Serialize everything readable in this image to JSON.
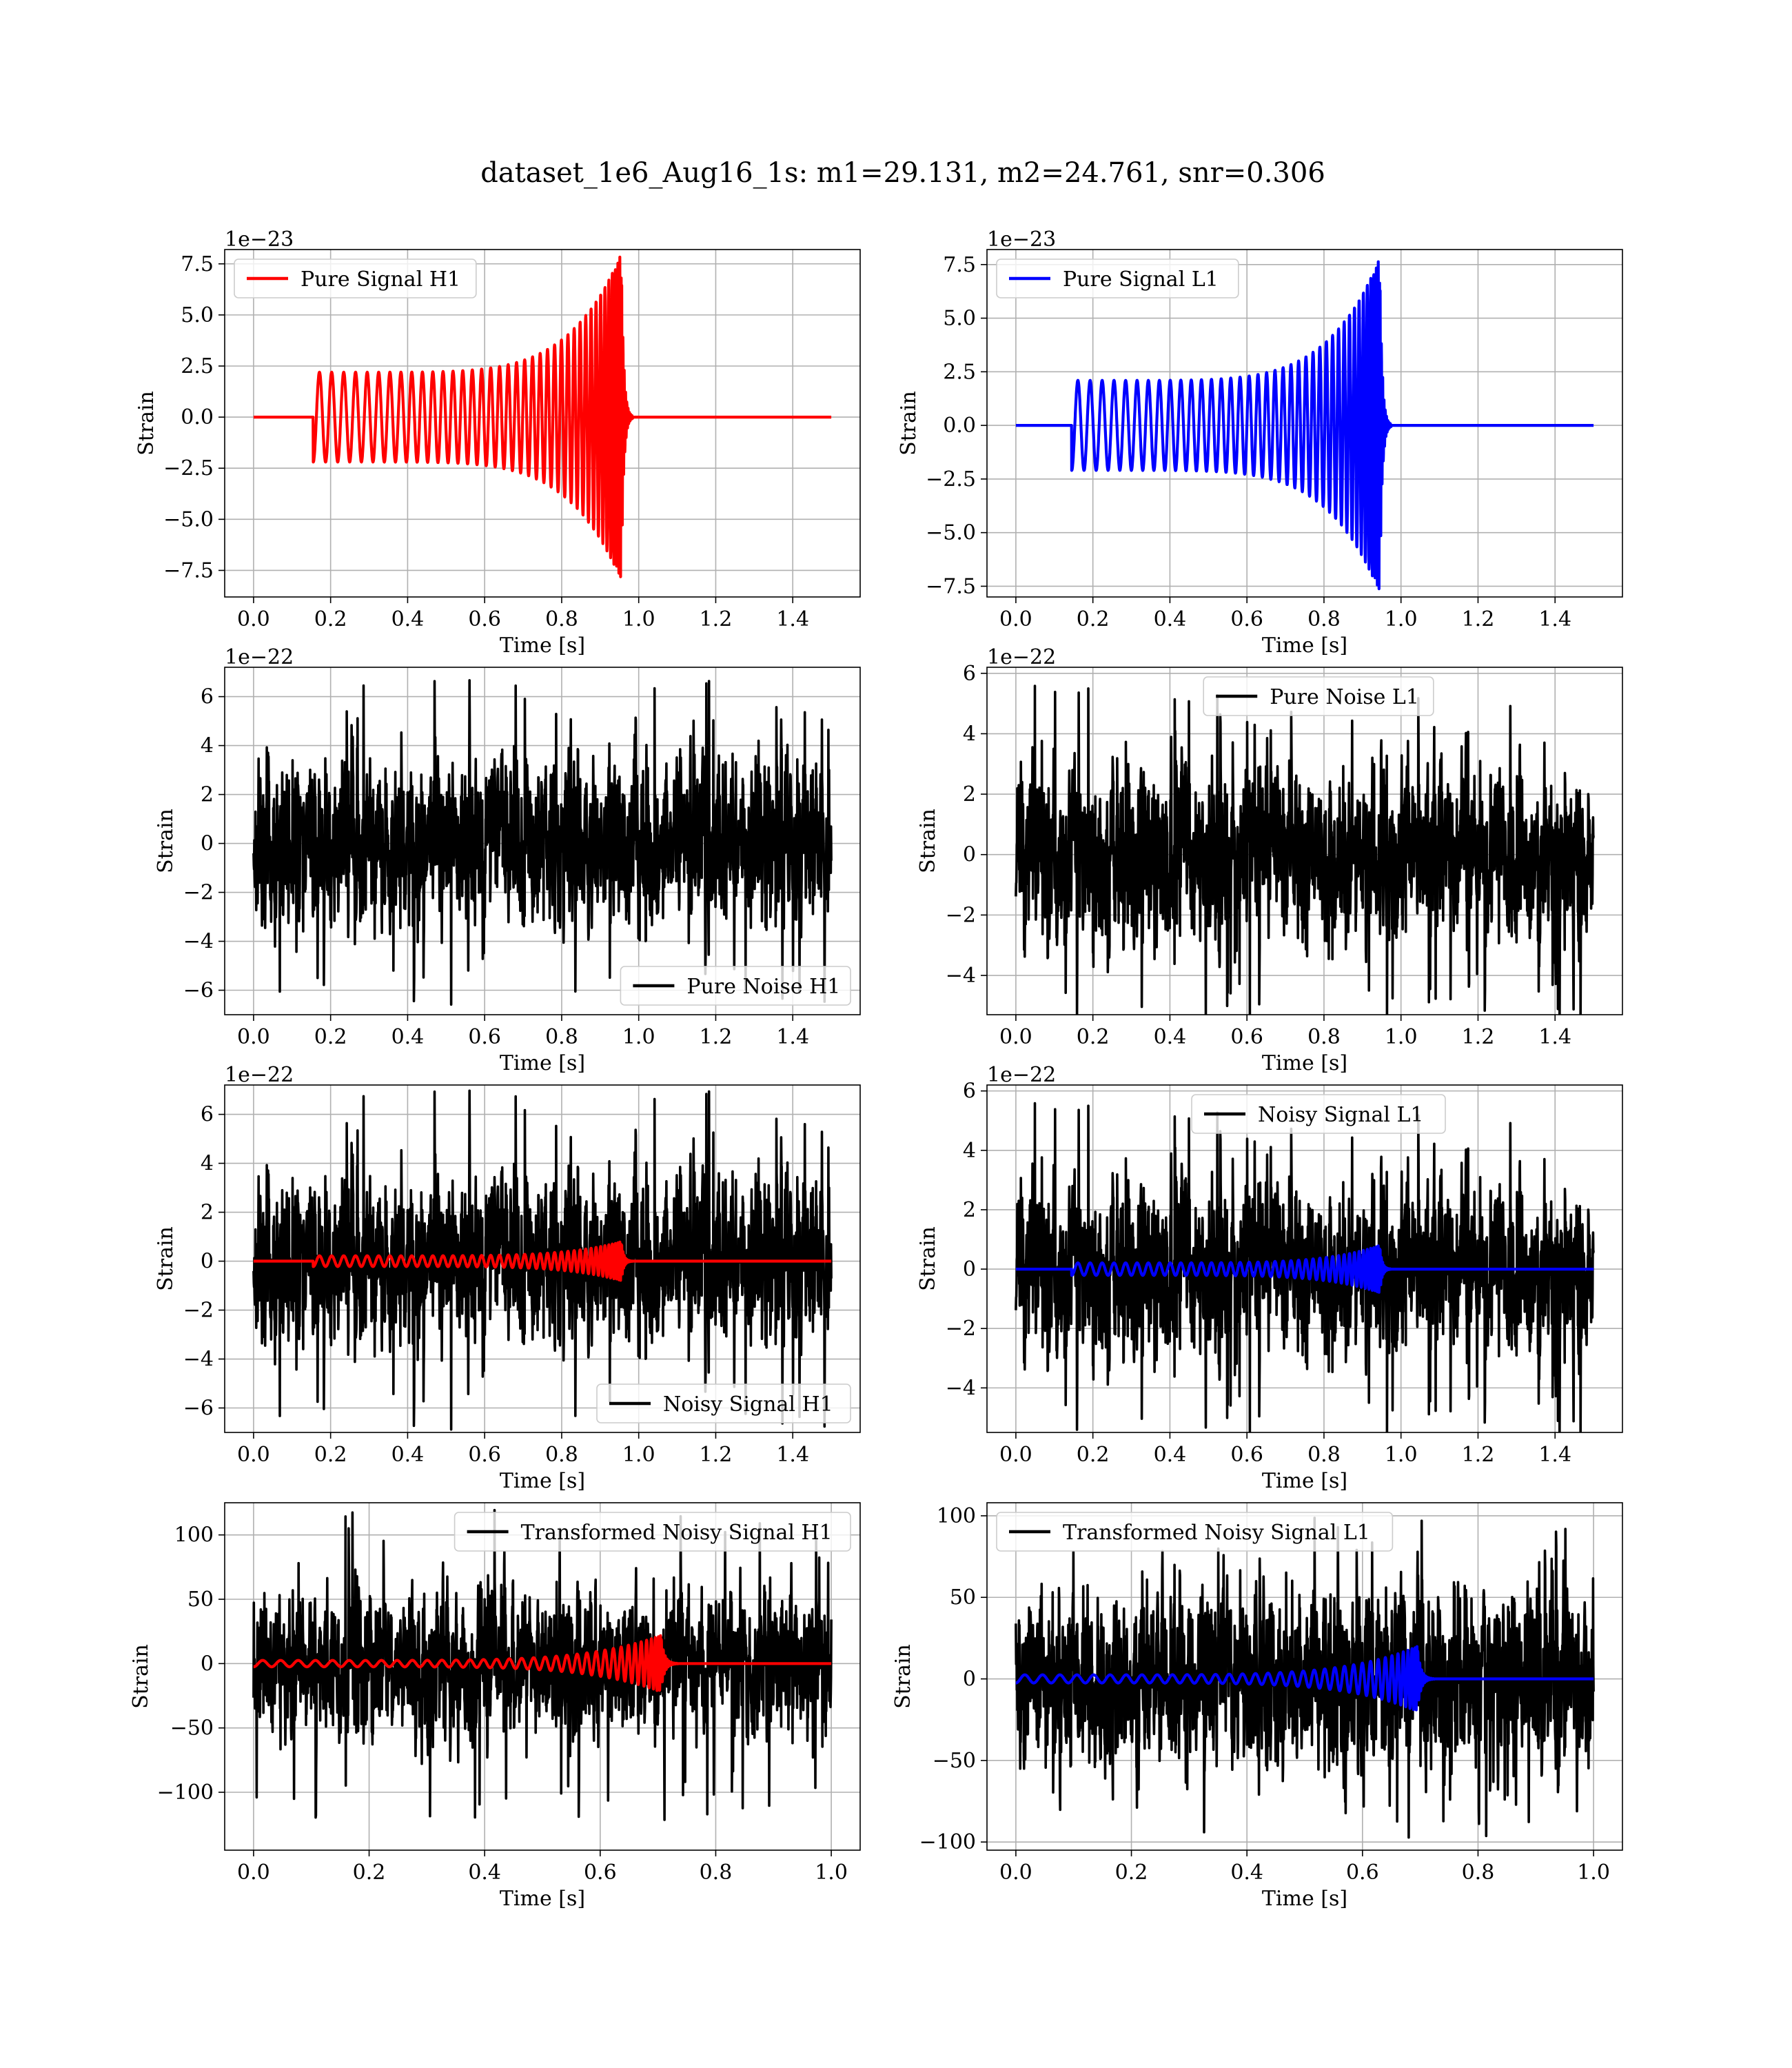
{
  "title": "dataset_1e6_Aug16_1s: m1=29.131, m2=24.761, snr=0.306",
  "chart_data": [
    {
      "type": "line",
      "panel": "top-left",
      "xlabel": "Time [s]",
      "ylabel": "Strain",
      "offset_text": "1e−23",
      "xlim": [
        -0.075,
        1.575
      ],
      "ylim": [
        -8.8,
        8.2
      ],
      "xticks": [
        0.0,
        0.2,
        0.4,
        0.6,
        0.8,
        1.0,
        1.2,
        1.4
      ],
      "xtick_labels": [
        "0.0",
        "0.2",
        "0.4",
        "0.6",
        "0.8",
        "1.0",
        "1.2",
        "1.4"
      ],
      "yticks": [
        -7.5,
        -5.0,
        -2.5,
        0.0,
        2.5,
        5.0,
        7.5
      ],
      "ytick_labels": [
        "−7.5",
        "−5.0",
        "−2.5",
        "0.0",
        "2.5",
        "5.0",
        "7.5"
      ],
      "legend": "upper-left",
      "series": [
        {
          "name": "Pure Signal H1",
          "kind": "chirp",
          "color": "#ff0000",
          "x_range": [
            0,
            1.5
          ],
          "t_start": 0.155,
          "t_merge": 0.955,
          "amplitude_start": 2.2,
          "amplitude_peak": 8.0,
          "cycles": 40
        }
      ]
    },
    {
      "type": "line",
      "panel": "top-right",
      "xlabel": "Time [s]",
      "ylabel": "Strain",
      "offset_text": "1e−23",
      "xlim": [
        -0.075,
        1.575
      ],
      "ylim": [
        -8.0,
        8.2
      ],
      "xticks": [
        0.0,
        0.2,
        0.4,
        0.6,
        0.8,
        1.0,
        1.2,
        1.4
      ],
      "xtick_labels": [
        "0.0",
        "0.2",
        "0.4",
        "0.6",
        "0.8",
        "1.0",
        "1.2",
        "1.4"
      ],
      "yticks": [
        -7.5,
        -5.0,
        -2.5,
        0.0,
        2.5,
        5.0,
        7.5
      ],
      "ytick_labels": [
        "−7.5",
        "−5.0",
        "−2.5",
        "0.0",
        "2.5",
        "5.0",
        "7.5"
      ],
      "legend": "upper-left",
      "series": [
        {
          "name": "Pure Signal L1",
          "kind": "chirp",
          "color": "#0000ff",
          "x_range": [
            0,
            1.5
          ],
          "t_start": 0.145,
          "t_merge": 0.945,
          "amplitude_start": 2.1,
          "amplitude_peak": 7.8,
          "cycles": 40
        }
      ]
    },
    {
      "type": "line",
      "panel": "second-left",
      "xlabel": "Time [s]",
      "ylabel": "Strain",
      "offset_text": "1e−22",
      "xlim": [
        -0.075,
        1.575
      ],
      "ylim": [
        -7.0,
        7.2
      ],
      "xticks": [
        0.0,
        0.2,
        0.4,
        0.6,
        0.8,
        1.0,
        1.2,
        1.4
      ],
      "xtick_labels": [
        "0.0",
        "0.2",
        "0.4",
        "0.6",
        "0.8",
        "1.0",
        "1.2",
        "1.4"
      ],
      "yticks": [
        -6,
        -4,
        -2,
        0,
        2,
        4,
        6
      ],
      "ytick_labels": [
        "−6",
        "−4",
        "−2",
        "0",
        "2",
        "4",
        "6"
      ],
      "legend": "lower-right",
      "series": [
        {
          "name": "Pure Noise H1",
          "kind": "noise",
          "color": "#000000",
          "x_range": [
            0,
            1.5
          ],
          "spread": 1.45,
          "max_abs": 6.7,
          "seed": 11
        }
      ]
    },
    {
      "type": "line",
      "panel": "second-right",
      "xlabel": "Time [s]",
      "ylabel": "Strain",
      "offset_text": "1e−22",
      "xlim": [
        -0.075,
        1.575
      ],
      "ylim": [
        -5.3,
        6.2
      ],
      "xticks": [
        0.0,
        0.2,
        0.4,
        0.6,
        0.8,
        1.0,
        1.2,
        1.4
      ],
      "xtick_labels": [
        "0.0",
        "0.2",
        "0.4",
        "0.6",
        "0.8",
        "1.0",
        "1.2",
        "1.4"
      ],
      "yticks": [
        -4,
        -2,
        0,
        2,
        4,
        6
      ],
      "ytick_labels": [
        "−4",
        "−2",
        "0",
        "2",
        "4",
        "6"
      ],
      "legend": "upper-center",
      "series": [
        {
          "name": "Pure Noise L1",
          "kind": "noise",
          "color": "#000000",
          "x_range": [
            0,
            1.5
          ],
          "spread": 1.25,
          "max_abs": 5.6,
          "seed": 23
        }
      ]
    },
    {
      "type": "line",
      "panel": "third-left",
      "xlabel": "Time [s]",
      "ylabel": "Strain",
      "offset_text": "1e−22",
      "xlim": [
        -0.075,
        1.575
      ],
      "ylim": [
        -7.0,
        7.2
      ],
      "xticks": [
        0.0,
        0.2,
        0.4,
        0.6,
        0.8,
        1.0,
        1.2,
        1.4
      ],
      "xtick_labels": [
        "0.0",
        "0.2",
        "0.4",
        "0.6",
        "0.8",
        "1.0",
        "1.2",
        "1.4"
      ],
      "yticks": [
        -6,
        -4,
        -2,
        0,
        2,
        4,
        6
      ],
      "ytick_labels": [
        "−6",
        "−4",
        "−2",
        "0",
        "2",
        "4",
        "6"
      ],
      "legend": "lower-right",
      "series": [
        {
          "name": "Noisy Signal H1",
          "kind": "noise",
          "color": "#000000",
          "x_range": [
            0,
            1.5
          ],
          "spread": 1.45,
          "max_abs": 7.0,
          "seed": 11
        },
        {
          "kind": "chirp",
          "color": "#ff0000",
          "x_range": [
            0,
            1.5
          ],
          "t_start": 0.155,
          "t_merge": 0.955,
          "amplitude_start": 0.22,
          "amplitude_peak": 0.8,
          "cycles": 40
        }
      ]
    },
    {
      "type": "line",
      "panel": "third-right",
      "xlabel": "Time [s]",
      "ylabel": "Strain",
      "offset_text": "1e−22",
      "xlim": [
        -0.075,
        1.575
      ],
      "ylim": [
        -5.5,
        6.2
      ],
      "xticks": [
        0.0,
        0.2,
        0.4,
        0.6,
        0.8,
        1.0,
        1.2,
        1.4
      ],
      "xtick_labels": [
        "0.0",
        "0.2",
        "0.4",
        "0.6",
        "0.8",
        "1.0",
        "1.2",
        "1.4"
      ],
      "yticks": [
        -4,
        -2,
        0,
        2,
        4,
        6
      ],
      "ytick_labels": [
        "−4",
        "−2",
        "0",
        "2",
        "4",
        "6"
      ],
      "legend": "upper-center",
      "series": [
        {
          "name": "Noisy Signal L1",
          "kind": "noise",
          "color": "#000000",
          "x_range": [
            0,
            1.5
          ],
          "spread": 1.25,
          "max_abs": 5.6,
          "seed": 23
        },
        {
          "kind": "chirp",
          "color": "#0000ff",
          "x_range": [
            0,
            1.5
          ],
          "t_start": 0.145,
          "t_merge": 0.945,
          "amplitude_start": 0.21,
          "amplitude_peak": 0.8,
          "cycles": 40
        }
      ]
    },
    {
      "type": "line",
      "panel": "bottom-left",
      "xlabel": "Time [s]",
      "ylabel": "Strain",
      "offset_text": "",
      "xlim": [
        -0.05,
        1.05
      ],
      "ylim": [
        -145,
        125
      ],
      "xticks": [
        0.0,
        0.2,
        0.4,
        0.6,
        0.8,
        1.0
      ],
      "xtick_labels": [
        "0.0",
        "0.2",
        "0.4",
        "0.6",
        "0.8",
        "1.0"
      ],
      "yticks": [
        -100,
        -50,
        0,
        50,
        100
      ],
      "ytick_labels": [
        "−100",
        "−50",
        "0",
        "50",
        "100"
      ],
      "legend": "upper-right",
      "series": [
        {
          "name": "Transformed Noisy Signal H1",
          "kind": "noise",
          "color": "#000000",
          "x_range": [
            0,
            1.0
          ],
          "spread": 24,
          "max_abs": 122,
          "seed": 37
        },
        {
          "kind": "chirp",
          "color": "#ff0000",
          "x_range": [
            0,
            1.0
          ],
          "t_start": 0.0,
          "t_merge": 0.705,
          "amplitude_start": 2.5,
          "amplitude_peak": 22,
          "cycles": 36
        }
      ]
    },
    {
      "type": "line",
      "panel": "bottom-right",
      "xlabel": "Time [s]",
      "ylabel": "Strain",
      "offset_text": "",
      "xlim": [
        -0.05,
        1.05
      ],
      "ylim": [
        -105,
        108
      ],
      "xticks": [
        0.0,
        0.2,
        0.4,
        0.6,
        0.8,
        1.0
      ],
      "xtick_labels": [
        "0.0",
        "0.2",
        "0.4",
        "0.6",
        "0.8",
        "1.0"
      ],
      "yticks": [
        -100,
        -50,
        0,
        50,
        100
      ],
      "ytick_labels": [
        "−100",
        "−50",
        "0",
        "50",
        "100"
      ],
      "legend": "upper-left",
      "series": [
        {
          "name": "Transformed Noisy Signal L1",
          "kind": "noise",
          "color": "#000000",
          "x_range": [
            0,
            1.0
          ],
          "spread": 24,
          "max_abs": 100,
          "seed": 53
        },
        {
          "kind": "chirp",
          "color": "#0000ff",
          "x_range": [
            0,
            1.0
          ],
          "t_start": 0.0,
          "t_merge": 0.695,
          "amplitude_start": 2.5,
          "amplitude_peak": 20,
          "cycles": 36
        }
      ]
    }
  ]
}
